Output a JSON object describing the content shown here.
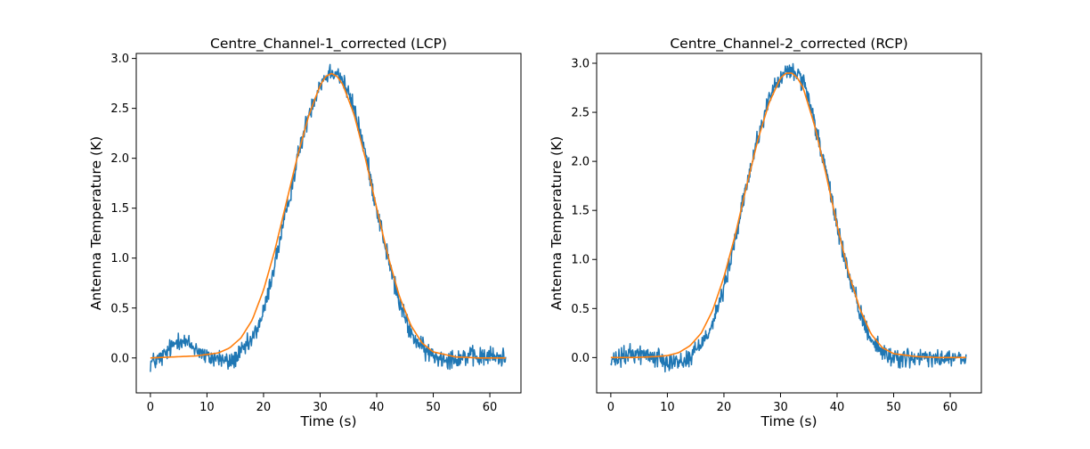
{
  "chart_data": [
    {
      "type": "line",
      "title": "Centre_Channel-1_corrected (LCP)",
      "xlabel": "Time (s)",
      "ylabel": "Antenna Temperature (K)",
      "xlim": [
        -2.5,
        65.5
      ],
      "ylim": [
        -0.35,
        3.05
      ],
      "xticks": [
        0,
        10,
        20,
        30,
        40,
        50,
        60
      ],
      "xtick_labels": [
        "0",
        "10",
        "20",
        "30",
        "40",
        "50",
        "60"
      ],
      "yticks": [
        0.0,
        0.5,
        1.0,
        1.5,
        2.0,
        2.5,
        3.0
      ],
      "ytick_labels": [
        "0.0",
        "0.5",
        "1.0",
        "1.5",
        "2.0",
        "2.5",
        "3.0"
      ],
      "grid": false,
      "series": [
        {
          "color": "#1f77b4",
          "style": "noisy",
          "x": [
            0,
            2,
            4,
            5,
            6,
            8,
            10,
            12,
            14,
            16,
            18,
            20,
            22,
            24,
            26,
            28,
            30,
            31,
            32,
            33,
            34,
            36,
            38,
            40,
            42,
            44,
            46,
            48,
            50,
            52,
            54,
            56,
            58,
            60,
            62,
            62.8
          ],
          "y": [
            -0.05,
            0.0,
            0.12,
            0.2,
            0.16,
            0.1,
            0.0,
            0.0,
            -0.05,
            0.05,
            0.18,
            0.45,
            0.95,
            1.45,
            2.0,
            2.45,
            2.75,
            2.82,
            2.88,
            2.86,
            2.78,
            2.5,
            2.05,
            1.5,
            1.0,
            0.55,
            0.25,
            0.1,
            0.02,
            0.0,
            0.0,
            0.02,
            0.0,
            0.02,
            0.0,
            0.02
          ],
          "noise": 0.07
        },
        {
          "color": "#ff7f0e",
          "style": "smooth",
          "x": [
            0,
            4,
            8,
            12,
            14,
            16,
            18,
            20,
            22,
            24,
            26,
            28,
            30,
            31,
            32,
            33,
            34,
            36,
            38,
            40,
            42,
            44,
            46,
            48,
            50,
            54,
            58,
            62.8
          ],
          "y": [
            0.0,
            0.01,
            0.02,
            0.05,
            0.1,
            0.2,
            0.38,
            0.68,
            1.08,
            1.55,
            2.02,
            2.43,
            2.73,
            2.82,
            2.85,
            2.82,
            2.74,
            2.44,
            2.0,
            1.5,
            1.02,
            0.62,
            0.33,
            0.15,
            0.06,
            0.01,
            0.0,
            0.0
          ]
        }
      ]
    },
    {
      "type": "line",
      "title": "Centre_Channel-2_corrected (RCP)",
      "xlabel": "Time (s)",
      "ylabel": "Antenna Temperature (K)",
      "xlim": [
        -2.5,
        65.5
      ],
      "ylim": [
        -0.36,
        3.1
      ],
      "xticks": [
        0,
        10,
        20,
        30,
        40,
        50,
        60
      ],
      "xtick_labels": [
        "0",
        "10",
        "20",
        "30",
        "40",
        "50",
        "60"
      ],
      "yticks": [
        0.0,
        0.5,
        1.0,
        1.5,
        2.0,
        2.5,
        3.0
      ],
      "ytick_labels": [
        "0.0",
        "0.5",
        "1.0",
        "1.5",
        "2.0",
        "2.5",
        "3.0"
      ],
      "grid": false,
      "series": [
        {
          "color": "#1f77b4",
          "style": "noisy",
          "x": [
            0,
            2,
            4,
            6,
            8,
            10,
            12,
            14,
            16,
            18,
            20,
            22,
            24,
            26,
            28,
            30,
            31,
            32,
            33,
            34,
            36,
            38,
            40,
            42,
            44,
            46,
            48,
            50,
            52,
            54,
            56,
            58,
            60,
            62,
            62.8
          ],
          "y": [
            -0.05,
            0.0,
            0.05,
            0.03,
            0.0,
            -0.02,
            -0.05,
            0.0,
            0.15,
            0.35,
            0.7,
            1.2,
            1.75,
            2.25,
            2.65,
            2.85,
            2.9,
            2.92,
            2.9,
            2.8,
            2.4,
            1.9,
            1.35,
            0.85,
            0.45,
            0.2,
            0.05,
            0.0,
            0.0,
            -0.02,
            0.0,
            -0.02,
            0.0,
            -0.02,
            -0.05
          ],
          "noise": 0.07
        },
        {
          "color": "#ff7f0e",
          "style": "smooth",
          "x": [
            0,
            4,
            8,
            10,
            12,
            14,
            16,
            18,
            20,
            22,
            24,
            26,
            28,
            30,
            31,
            32,
            33,
            34,
            36,
            38,
            40,
            42,
            44,
            46,
            48,
            50,
            54,
            58,
            62.8
          ],
          "y": [
            0.0,
            0.0,
            0.01,
            0.02,
            0.05,
            0.12,
            0.25,
            0.48,
            0.82,
            1.25,
            1.75,
            2.22,
            2.6,
            2.85,
            2.9,
            2.9,
            2.85,
            2.75,
            2.37,
            1.88,
            1.35,
            0.87,
            0.5,
            0.24,
            0.1,
            0.04,
            0.01,
            0.0,
            0.0
          ]
        }
      ]
    }
  ]
}
